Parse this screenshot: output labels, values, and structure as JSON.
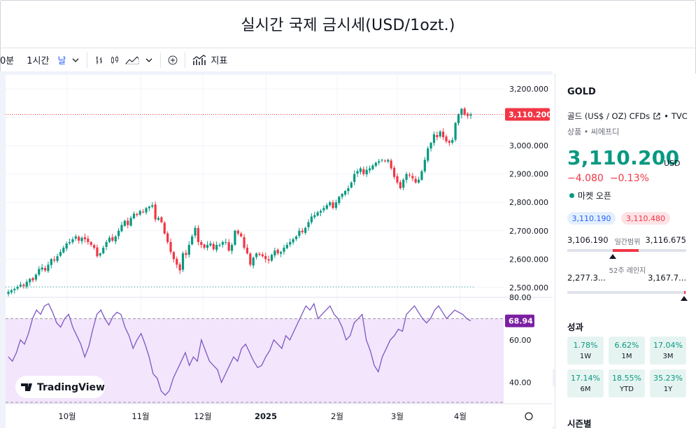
{
  "title": "실시간 국제 금시세(USD/1ozt.)",
  "toolbar": {
    "interval_10m": "0분",
    "interval_1h": "1시간",
    "interval_day": "날",
    "indicators_label": "지표"
  },
  "chart": {
    "price_axis_labels": [
      "3,200.000",
      "3,100.000",
      "3,000.000",
      "2,900.000",
      "2,800.000",
      "2,700.000",
      "2,600.000",
      "2,500.000"
    ],
    "current_price_label": "3,110.200",
    "rsi_axis_labels": [
      "80.00",
      "60.00",
      "40.00"
    ],
    "rsi_value_label": "68.94",
    "time_labels": [
      "10월",
      "11월",
      "12월",
      "2025",
      "2월",
      "3월",
      "4월"
    ],
    "watermark": "TradingView",
    "colors": {
      "up": "#089981",
      "down": "#f23645",
      "rsi_line": "#7e57c2",
      "rsi_fill": "#f3e5fc"
    }
  },
  "chart_data": {
    "type": "candlestick",
    "title": "",
    "ylim": [
      2460,
      3230
    ],
    "series": [
      {
        "name": "",
        "values": [
          2485,
          2490,
          2495,
          2502,
          2510,
          2505,
          2520,
          2530,
          2525,
          2545,
          2565,
          2570,
          2560,
          2580,
          2600,
          2595,
          2610,
          2625,
          2640,
          2655,
          2660,
          2670,
          2680,
          2665,
          2675,
          2670,
          2660,
          2650,
          2640,
          2610,
          2620,
          2640,
          2660,
          2675,
          2665,
          2680,
          2700,
          2720,
          2735,
          2720,
          2745,
          2760,
          2755,
          2770,
          2765,
          2780,
          2785,
          2790,
          2740,
          2745,
          2730,
          2690,
          2660,
          2625,
          2600,
          2580,
          2560,
          2620,
          2615,
          2650,
          2680,
          2710,
          2660,
          2650,
          2640,
          2650,
          2655,
          2635,
          2650,
          2650,
          2660,
          2660,
          2630,
          2650,
          2700,
          2690,
          2680,
          2640,
          2620,
          2580,
          2605,
          2620,
          2615,
          2610,
          2600,
          2595,
          2615,
          2630,
          2620,
          2625,
          2640,
          2650,
          2660,
          2670,
          2680,
          2700,
          2695,
          2710,
          2730,
          2750,
          2755,
          2765,
          2770,
          2780,
          2790,
          2800,
          2780,
          2800,
          2820,
          2830,
          2840,
          2850,
          2870,
          2900,
          2910,
          2920,
          2900,
          2915,
          2920,
          2930,
          2940,
          2945,
          2950,
          2945,
          2950,
          2920,
          2890,
          2870,
          2850,
          2880,
          2900,
          2895,
          2885,
          2870,
          2880,
          2910,
          2950,
          2990,
          3010,
          3040,
          3030,
          3050,
          3030,
          3015,
          3010,
          3020,
          3080,
          3110,
          3130,
          3110,
          3105,
          3110
        ]
      }
    ],
    "current_price": 3110.2,
    "dashed_reference_level": 2502,
    "rsi": {
      "current": 68.94,
      "ylim": [
        30,
        80
      ],
      "overbought": 70,
      "oversold": 30,
      "values": [
        52,
        50,
        54,
        60,
        58,
        63,
        70,
        74,
        72,
        76,
        77,
        73,
        68,
        66,
        70,
        72,
        66,
        62,
        58,
        52,
        57,
        65,
        72,
        74,
        70,
        67,
        71,
        73,
        72,
        66,
        62,
        56,
        60,
        63,
        58,
        52,
        44,
        42,
        36,
        34,
        36,
        42,
        46,
        50,
        54,
        48,
        52,
        50,
        60,
        55,
        50,
        48,
        46,
        40,
        44,
        48,
        52,
        50,
        56,
        58,
        54,
        50,
        47,
        48,
        52,
        55,
        60,
        58,
        56,
        62,
        60,
        64,
        68,
        72,
        76,
        74,
        77,
        70,
        72,
        74,
        76,
        72,
        70,
        66,
        60,
        62,
        68,
        70,
        72,
        60,
        55,
        48,
        45,
        52,
        56,
        60,
        62,
        65,
        64,
        72,
        74,
        76,
        73,
        70,
        68,
        70,
        74,
        76,
        73,
        70,
        72,
        74,
        73,
        72,
        70,
        68.94
      ]
    }
  },
  "sidepanel": {
    "symbol": "GOLD",
    "description": "골드 (US$ / OZ) CFDs",
    "exchange": "TVC",
    "category": "상품 • 씨에프디",
    "price": "3,110.200",
    "currency": "USD",
    "change": "−4.080",
    "change_pct": "−0.13%",
    "market_status": "마켓 오픈",
    "bid": "3,110.190",
    "ask": "3,110.480",
    "day_low": "3,106.190",
    "day_range_label": "일간범위",
    "day_high": "3,116.675",
    "day_range_position": 0.38,
    "week52_low": "2,277.3...",
    "week52_label": "52주 레인지",
    "week52_high": "3,167.7...",
    "week52_range_position": 0.98,
    "performance_title": "성과",
    "performance": [
      {
        "value": "1.78%",
        "label": "1W"
      },
      {
        "value": "6.62%",
        "label": "1M"
      },
      {
        "value": "17.04%",
        "label": "3M"
      },
      {
        "value": "17.14%",
        "label": "6M"
      },
      {
        "value": "18.55%",
        "label": "YTD"
      },
      {
        "value": "35.23%",
        "label": "1Y"
      }
    ],
    "seasonal_title": "시즌별"
  }
}
